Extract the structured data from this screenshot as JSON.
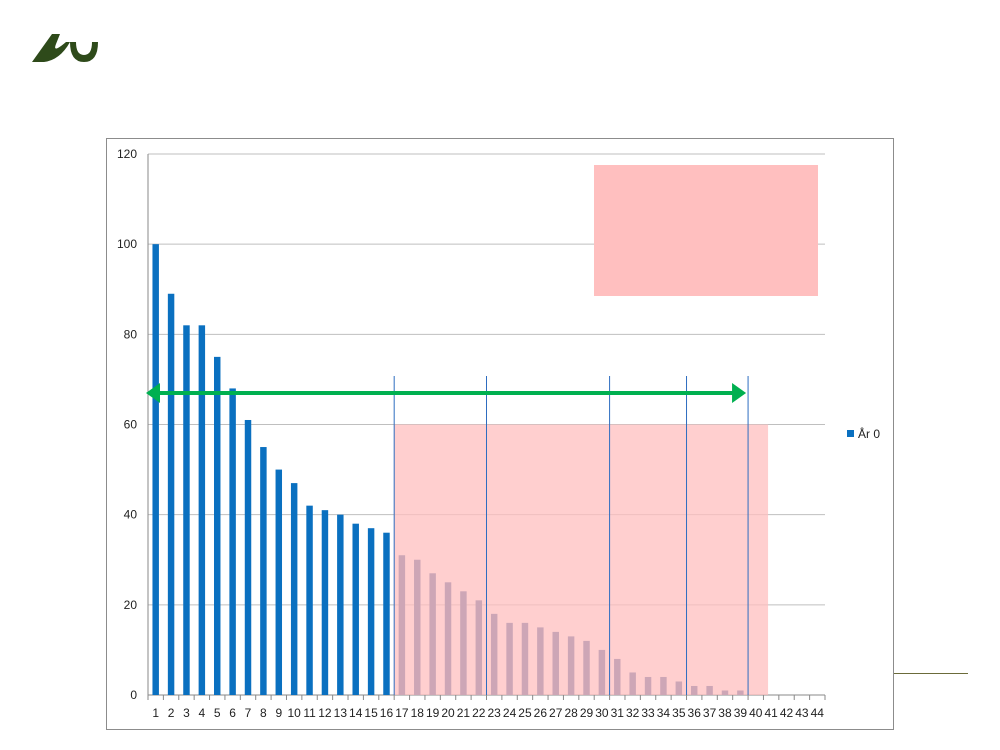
{
  "colors": {
    "bar": "#0a70c0",
    "bar_highlighted": "#3b5c9c",
    "highlight_region": "#ffbfbf",
    "arrow": "#00b050",
    "marker_line": "#2e6dc0",
    "grid": "#bfbfbf",
    "logo": "#2e4a1a"
  },
  "logo": {
    "icon": "aarhus-university-logo"
  },
  "chart_data": {
    "type": "bar",
    "title": "",
    "xlabel": "",
    "ylabel": "",
    "ylim": [
      0,
      120
    ],
    "yticks": [
      0,
      20,
      40,
      60,
      80,
      100,
      120
    ],
    "grid": true,
    "legend_position": "right",
    "categories": [
      "1",
      "2",
      "3",
      "4",
      "5",
      "6",
      "7",
      "8",
      "9",
      "10",
      "11",
      "12",
      "13",
      "14",
      "15",
      "16",
      "17",
      "18",
      "19",
      "20",
      "21",
      "22",
      "23",
      "24",
      "25",
      "26",
      "27",
      "28",
      "29",
      "30",
      "31",
      "32",
      "33",
      "34",
      "35",
      "36",
      "37",
      "38",
      "39",
      "40",
      "41",
      "42",
      "43",
      "44"
    ],
    "series": [
      {
        "name": "År 0",
        "values": [
          100,
          89,
          82,
          82,
          75,
          68,
          61,
          55,
          50,
          47,
          42,
          41,
          40,
          38,
          37,
          36,
          31,
          30,
          27,
          25,
          23,
          21,
          18,
          16,
          16,
          15,
          14,
          13,
          12,
          10,
          8,
          5,
          4,
          4,
          3,
          2,
          2,
          1,
          1,
          0,
          0,
          0,
          0,
          0
        ]
      }
    ],
    "annotations": {
      "shaded_region": {
        "from_category": "17",
        "to_category": "41",
        "y_top": 60
      },
      "shaded_box_top_right": true,
      "vertical_markers_after_category": [
        "16",
        "22",
        "30",
        "35",
        "39"
      ],
      "double_arrow": {
        "from_category": "1",
        "to_category": "39",
        "y": 67
      }
    }
  }
}
